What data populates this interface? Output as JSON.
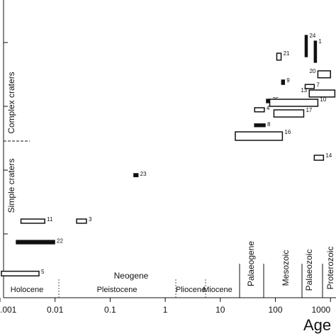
{
  "chart_data": {
    "type": "range-boxes",
    "x_label": "Age",
    "y_annotations": [
      "Simple craters",
      "Complex craters"
    ],
    "periods": [
      "Holocene",
      "Pleistocene",
      "Pliocene",
      "Miocene",
      "Neogene",
      "Palaeogene",
      "Mesozoic",
      "Palaeozoic",
      "Proterozoic"
    ],
    "xlog": true,
    "ylog": true,
    "xlim": [
      0.001,
      1260
    ],
    "ylim": [
      0.01,
      464
    ],
    "xticks": [
      {
        "value": 0.001,
        "label": ".001"
      },
      0.01,
      0.1,
      1,
      10,
      100,
      {
        "value": 1000,
        "label": "1000"
      }
    ],
    "yticks": [
      0.1,
      1,
      10,
      100
    ],
    "boxes": [
      {
        "label": "5",
        "x": [
          0.00106,
          0.0051
        ],
        "y": [
          0.022,
          0.026
        ],
        "filled": false
      },
      {
        "label": "22",
        "x": [
          0.00198,
          0.0098
        ],
        "y": [
          0.07,
          0.079
        ],
        "filled": true
      },
      {
        "label": "11",
        "x": [
          0.0024,
          0.0065
        ],
        "y": [
          0.147,
          0.171
        ],
        "filled": false
      },
      {
        "label": "3",
        "x": [
          0.0246,
          0.0371
        ],
        "y": [
          0.147,
          0.171
        ],
        "filled": false
      },
      {
        "label": "23",
        "x": [
          0.27,
          0.32
        ],
        "y": [
          0.79,
          0.88
        ],
        "filled": true
      },
      {
        "label": "16",
        "x": [
          18.7,
          134
        ],
        "y": [
          2.93,
          3.98
        ],
        "filled": false
      },
      {
        "label": "8",
        "x": [
          42,
          65
        ],
        "y": [
          4.8,
          5.3
        ],
        "filled": true
      },
      {
        "label": "4",
        "x": [
          42,
          63
        ],
        "y": [
          8.2,
          9.5
        ],
        "filled": false
      },
      {
        "label": "25",
        "x": [
          69,
          81
        ],
        "y": [
          11.4,
          12.9
        ],
        "filled": true
      },
      {
        "label": "9",
        "x": [
          130,
          146
        ],
        "y": [
          22.1,
          25.8
        ],
        "filled": true
      },
      {
        "label": "17",
        "x": [
          94,
          327
        ],
        "y": [
          6.8,
          8.8
        ],
        "filled": false
      },
      {
        "label": "10",
        "x": [
          79,
          590
        ],
        "y": [
          10,
          12.9
        ],
        "filled": false
      },
      {
        "label": "21",
        "x": [
          106,
          127
        ],
        "y": [
          53,
          68
        ],
        "filled": false
      },
      {
        "label": "24",
        "x": [
          347,
          379
        ],
        "y": [
          60,
          129
        ],
        "filled": true
      },
      {
        "label": "1",
        "x": [
          508,
          556
        ],
        "y": [
          49,
          105
        ],
        "filled": true
      },
      {
        "label": "7",
        "x": [
          347,
          508
        ],
        "y": [
          19,
          22
        ],
        "filled": false
      },
      {
        "label": "13",
        "x": [
          412,
          1200
        ],
        "y": [
          14,
          18
        ],
        "filled": false
      },
      {
        "label": "14",
        "x": [
          508,
          747
        ],
        "y": [
          1.43,
          1.71
        ],
        "filled": false
      },
      {
        "label": "20",
        "x": [
          590,
          1000
        ],
        "y": [
          28,
          36
        ],
        "filled": false
      }
    ]
  }
}
